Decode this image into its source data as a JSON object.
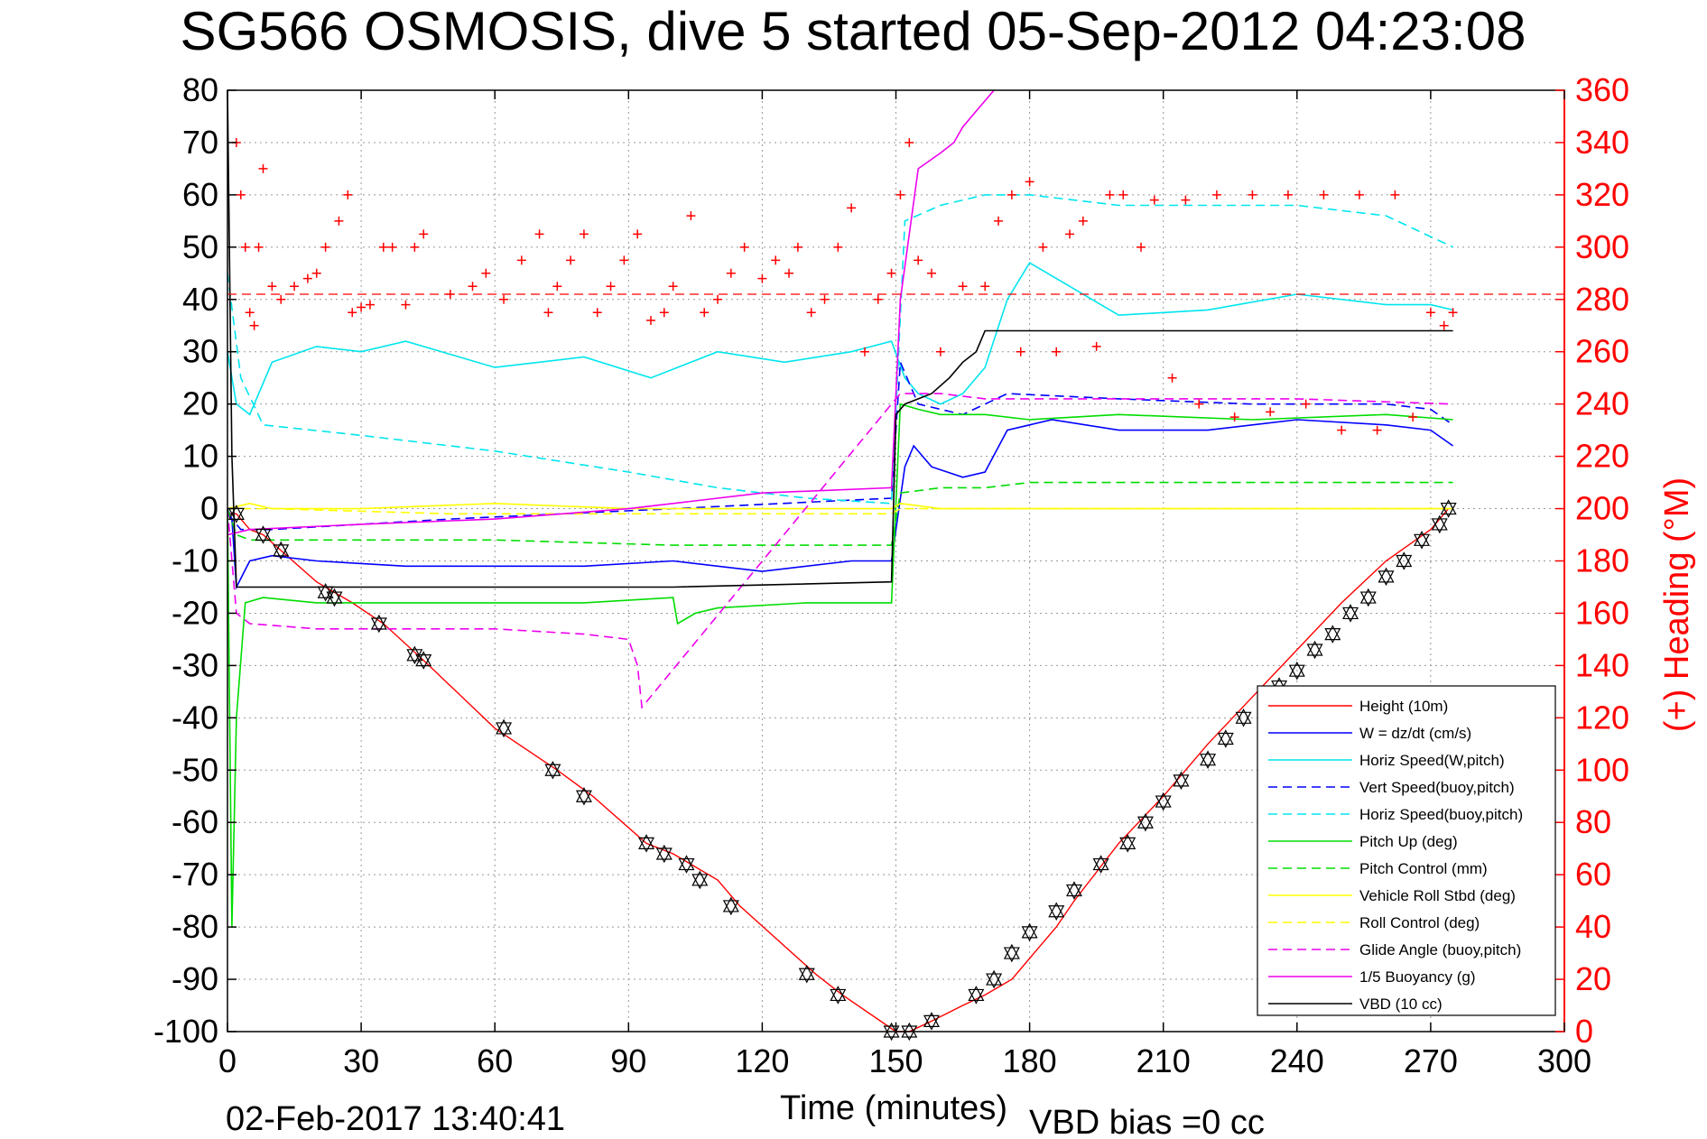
{
  "chart_data": {
    "type": "line",
    "title": "SG566 OSMOSIS, dive 5 started 05-Sep-2012 04:23:08",
    "xlabel": "Time (minutes)",
    "ylabel": "",
    "y2label": "(+) Heading (°M)",
    "xlim": [
      0,
      300
    ],
    "ylim": [
      -100,
      80
    ],
    "y2lim": [
      0,
      360
    ],
    "grid": true,
    "legend_position": "bottom-right",
    "x_ticks": [
      "0",
      "30",
      "60",
      "90",
      "120",
      "150",
      "180",
      "210",
      "240",
      "270",
      "300"
    ],
    "y_ticks": [
      "80",
      "70",
      "60",
      "50",
      "40",
      "30",
      "20",
      "10",
      "0",
      "-10",
      "-20",
      "-30",
      "-40",
      "-50",
      "-60",
      "-70",
      "-80",
      "-90",
      "-100"
    ],
    "y2_ticks": [
      "360",
      "340",
      "320",
      "300",
      "280",
      "260",
      "240",
      "220",
      "200",
      "180",
      "160",
      "140",
      "120",
      "100",
      "80",
      "60",
      "40",
      "20",
      "0"
    ],
    "footer_left": "02-Feb-2017 13:40:41",
    "footer_right": "VBD bias =0 cc",
    "series": [
      {
        "name": "Height (10m)",
        "color": "#ff0000",
        "style": "solid",
        "x": [
          0,
          2,
          5,
          8,
          12,
          20,
          28,
          35,
          44,
          60,
          74,
          82,
          94,
          100,
          104,
          110,
          115,
          132,
          138,
          150,
          153,
          158,
          165,
          170,
          176,
          181,
          186,
          190,
          200,
          210,
          220,
          230,
          240,
          250,
          260,
          265,
          270,
          274
        ],
        "y": [
          -1,
          -1,
          -4,
          -5,
          -8,
          -14,
          -18,
          -22,
          -29,
          -42,
          -50,
          -55,
          -64,
          -66,
          -68,
          -71,
          -76,
          -89,
          -93,
          -100,
          -100,
          -98,
          -95,
          -93,
          -90,
          -85,
          -80,
          -75,
          -64,
          -55,
          -45,
          -36,
          -27,
          -18,
          -10,
          -7,
          -4,
          0
        ]
      },
      {
        "name": "W = dz/dt (cm/s)",
        "color": "#0000ff",
        "style": "solid",
        "x": [
          0,
          1,
          2,
          5,
          10,
          20,
          40,
          60,
          80,
          100,
          120,
          140,
          149,
          152,
          154,
          158,
          165,
          170,
          175,
          185,
          200,
          220,
          240,
          260,
          270,
          275
        ],
        "y": [
          0,
          -2,
          -15,
          -10,
          -9,
          -10,
          -11,
          -11,
          -11,
          -10,
          -12,
          -10,
          -10,
          8,
          12,
          8,
          6,
          7,
          15,
          17,
          15,
          15,
          17,
          16,
          15,
          12
        ]
      },
      {
        "name": "Horiz Speed(W,pitch)",
        "color": "#00e5ee",
        "style": "solid",
        "x": [
          0,
          2,
          5,
          10,
          20,
          30,
          40,
          60,
          80,
          95,
          110,
          125,
          140,
          149,
          152,
          155,
          160,
          165,
          170,
          175,
          180,
          190,
          200,
          220,
          240,
          260,
          270,
          275
        ],
        "y": [
          30,
          20,
          18,
          28,
          31,
          30,
          32,
          27,
          29,
          25,
          30,
          28,
          30,
          32,
          25,
          22,
          20,
          22,
          27,
          40,
          47,
          42,
          37,
          38,
          41,
          39,
          39,
          38
        ]
      },
      {
        "name": "Vert Speed(buoy,pitch)",
        "color": "#0000ff",
        "style": "dashed",
        "x": [
          0,
          3,
          10,
          50,
          100,
          149,
          151,
          155,
          160,
          165,
          175,
          200,
          230,
          260,
          270,
          275
        ],
        "y": [
          -1,
          -4,
          -4,
          -2,
          0,
          2,
          28,
          20,
          19,
          18,
          22,
          21,
          20,
          20,
          19,
          16
        ]
      },
      {
        "name": "Horiz Speed(buoy,pitch)",
        "color": "#00e5ee",
        "style": "dashed",
        "x": [
          0,
          3,
          8,
          30,
          60,
          90,
          110,
          130,
          149,
          152,
          160,
          170,
          180,
          200,
          220,
          240,
          260,
          275
        ],
        "y": [
          45,
          25,
          16,
          14,
          11,
          7,
          4,
          2,
          1,
          55,
          58,
          60,
          60,
          58,
          58,
          58,
          56,
          50
        ]
      },
      {
        "name": "Pitch Up (deg)",
        "color": "#00dd00",
        "style": "solid",
        "x": [
          0,
          1,
          2,
          4,
          8,
          20,
          40,
          60,
          80,
          100,
          101,
          105,
          110,
          130,
          149,
          151,
          155,
          160,
          170,
          180,
          200,
          230,
          260,
          275
        ],
        "y": [
          0,
          -80,
          -40,
          -18,
          -17,
          -18,
          -18,
          -18,
          -18,
          -17,
          -22,
          -20,
          -19,
          -18,
          -18,
          20,
          19,
          18,
          18,
          17,
          18,
          17,
          18,
          17
        ]
      },
      {
        "name": "Pitch Control (mm)",
        "color": "#00dd00",
        "style": "dashed",
        "x": [
          0,
          2,
          5,
          20,
          60,
          100,
          149,
          151,
          160,
          170,
          180,
          200,
          230,
          260,
          275
        ],
        "y": [
          0,
          -5,
          -6,
          -6,
          -6,
          -7,
          -7,
          3,
          4,
          4,
          5,
          5,
          5,
          5,
          5
        ]
      },
      {
        "name": "Vehicle Roll Stbd (deg)",
        "color": "#ffff00",
        "style": "solid",
        "x": [
          0,
          5,
          10,
          30,
          60,
          90,
          120,
          149,
          151,
          160,
          180,
          210,
          240,
          270,
          275
        ],
        "y": [
          0,
          1,
          0,
          0,
          1,
          0,
          0,
          0,
          1,
          0,
          0,
          0,
          0,
          0,
          0
        ]
      },
      {
        "name": "Roll Control (deg)",
        "color": "#ffff00",
        "style": "dashed",
        "x": [
          0,
          5,
          10,
          50,
          100,
          149,
          151,
          160,
          200,
          240,
          275
        ],
        "y": [
          0,
          0,
          0,
          -1,
          -1,
          -1,
          0,
          0,
          0,
          0,
          0
        ]
      },
      {
        "name": "Glide Angle (buoy,pitch)",
        "color": "#ee00ee",
        "style": "dashed",
        "x": [
          0,
          2,
          5,
          20,
          40,
          60,
          80,
          90,
          92,
          93,
          149,
          151,
          160,
          170,
          200,
          240,
          275
        ],
        "y": [
          0,
          -20,
          -22,
          -23,
          -23,
          -23,
          -24,
          -25,
          -30,
          -38,
          20,
          22,
          22,
          21,
          21,
          21,
          20
        ]
      },
      {
        "name": "1/5 Buoyancy (g)",
        "color": "#ee00ee",
        "style": "solid",
        "x": [
          0,
          5,
          30,
          60,
          90,
          120,
          149,
          151,
          155,
          160,
          163,
          165,
          170,
          172
        ],
        "y": [
          -5,
          -4,
          -3,
          -2,
          0,
          3,
          4,
          40,
          65,
          68,
          70,
          73,
          78,
          80
        ]
      },
      {
        "name": "VBD (10 cc)",
        "color": "#000000",
        "style": "solid",
        "x": [
          0,
          1,
          2,
          5,
          40,
          100,
          149,
          150,
          152,
          158,
          162,
          165,
          168,
          170,
          180,
          240,
          275
        ],
        "y": [
          80,
          10,
          -15,
          -15,
          -15,
          -15,
          -14,
          18,
          20,
          22,
          25,
          28,
          30,
          34,
          34,
          34,
          34
        ]
      },
      {
        "name": "Heading",
        "axis": "right",
        "color": "#ff0000",
        "style": "markers-plus",
        "x": [
          2,
          3,
          4,
          5,
          6,
          7,
          8,
          10,
          12,
          15,
          18,
          20,
          22,
          25,
          27,
          28,
          30,
          32,
          35,
          37,
          40,
          42,
          44,
          50,
          55,
          58,
          62,
          66,
          70,
          72,
          74,
          77,
          80,
          83,
          86,
          89,
          92,
          95,
          98,
          100,
          104,
          107,
          110,
          113,
          116,
          120,
          123,
          126,
          128,
          131,
          134,
          137,
          140,
          143,
          146,
          149,
          151,
          153,
          155,
          158,
          160,
          165,
          170,
          173,
          176,
          178,
          180,
          183,
          186,
          189,
          192,
          195,
          198,
          201,
          205,
          208,
          212,
          215,
          218,
          222,
          226,
          230,
          234,
          238,
          242,
          246,
          250,
          254,
          258,
          262,
          266,
          270,
          273,
          275
        ],
        "y": [
          340,
          320,
          300,
          275,
          270,
          300,
          330,
          285,
          280,
          285,
          288,
          290,
          300,
          310,
          320,
          275,
          277,
          278,
          300,
          300,
          278,
          300,
          305,
          282,
          285,
          290,
          280,
          295,
          305,
          275,
          285,
          295,
          305,
          275,
          285,
          295,
          305,
          272,
          275,
          285,
          312,
          275,
          280,
          290,
          300,
          288,
          295,
          290,
          300,
          275,
          280,
          300,
          315,
          260,
          280,
          290,
          320,
          340,
          295,
          290,
          260,
          285,
          285,
          310,
          320,
          260,
          325,
          300,
          260,
          305,
          310,
          262,
          320,
          320,
          300,
          318,
          250,
          318,
          240,
          320,
          235,
          320,
          237,
          320,
          240,
          320,
          230,
          320,
          230,
          320,
          235,
          275,
          270,
          275
        ]
      }
    ],
    "legend": [
      "Height (10m)",
      "W = dz/dt (cm/s)",
      "Horiz Speed(W,pitch)",
      "Vert Speed(buoy,pitch)",
      "Horiz Speed(buoy,pitch)",
      "Pitch Up (deg)",
      "Pitch Control (mm)",
      "Vehicle Roll Stbd (deg)",
      "Roll Control (deg)",
      "Glide Angle (buoy,pitch)",
      "1/5 Buoyancy (g)",
      "VBD (10 cc)"
    ],
    "markers": {
      "triangle_points": [
        [
          2,
          -1
        ],
        [
          8,
          -5
        ],
        [
          12,
          -8
        ],
        [
          22,
          -16
        ],
        [
          24,
          -17
        ],
        [
          34,
          -22
        ],
        [
          42,
          -28
        ],
        [
          44,
          -29
        ],
        [
          62,
          -42
        ],
        [
          73,
          -50
        ],
        [
          80,
          -55
        ],
        [
          94,
          -64
        ],
        [
          98,
          -66
        ],
        [
          103,
          -68
        ],
        [
          106,
          -71
        ],
        [
          113,
          -76
        ],
        [
          130,
          -89
        ],
        [
          137,
          -93
        ],
        [
          149,
          -100
        ],
        [
          153,
          -100
        ],
        [
          158,
          -98
        ],
        [
          168,
          -93
        ],
        [
          172,
          -90
        ],
        [
          176,
          -85
        ],
        [
          180,
          -81
        ],
        [
          186,
          -77
        ],
        [
          190,
          -73
        ],
        [
          196,
          -68
        ],
        [
          202,
          -64
        ],
        [
          206,
          -60
        ],
        [
          210,
          -56
        ],
        [
          214,
          -52
        ],
        [
          220,
          -48
        ],
        [
          224,
          -44
        ],
        [
          228,
          -40
        ],
        [
          236,
          -34
        ],
        [
          240,
          -31
        ],
        [
          244,
          -27
        ],
        [
          248,
          -24
        ],
        [
          252,
          -20
        ],
        [
          256,
          -17
        ],
        [
          260,
          -13
        ],
        [
          264,
          -10
        ],
        [
          268,
          -6
        ],
        [
          272,
          -3
        ],
        [
          274,
          0
        ]
      ]
    }
  }
}
